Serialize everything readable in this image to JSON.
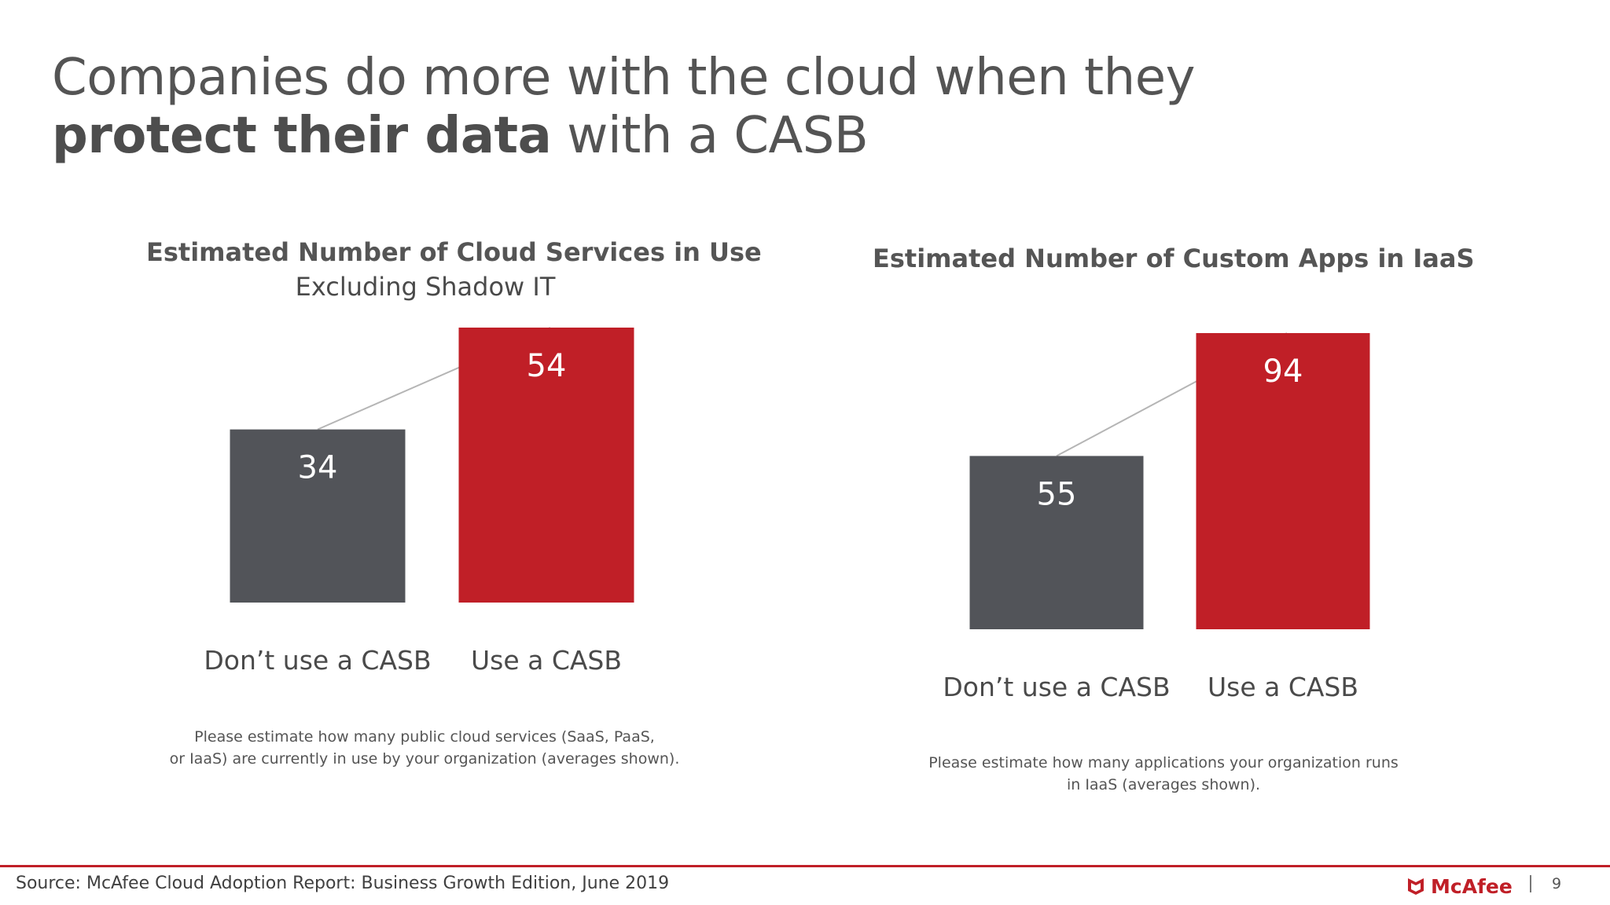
{
  "title": {
    "line1": "Companies do more with the cloud when they",
    "line2_bold": "protect their data",
    "line2_rest": " with a CASB"
  },
  "chart_data": [
    {
      "type": "bar",
      "title": "Estimated Number of Cloud Services in Use",
      "subtitle": "Excluding Shadow IT",
      "categories": [
        "Don’t use a CASB",
        "Use a CASB"
      ],
      "values": [
        34,
        54
      ],
      "data_labels": [
        "34",
        "54"
      ],
      "colors": [
        "#525459",
        "#c01f27"
      ],
      "ylim": [
        0,
        54
      ],
      "note": [
        "Please estimate how many public cloud services (SaaS, PaaS,",
        "or IaaS) are currently in use by your organization (averages shown)."
      ]
    },
    {
      "type": "bar",
      "title": "Estimated Number of Custom Apps in IaaS",
      "subtitle": "",
      "categories": [
        "Don’t use a CASB",
        "Use a CASB"
      ],
      "values": [
        55,
        94
      ],
      "data_labels": [
        "55",
        "94"
      ],
      "colors": [
        "#525459",
        "#c01f27"
      ],
      "ylim": [
        0,
        94
      ],
      "note": [
        "Please estimate how many applications your organization runs",
        "in IaaS (averages shown)."
      ]
    }
  ],
  "footer": {
    "source": "Source: McAfee Cloud Adoption Report: Business Growth Edition, June 2019",
    "logo_text": "McAfee",
    "page_number": "9",
    "accent_color": "#c01f27"
  }
}
